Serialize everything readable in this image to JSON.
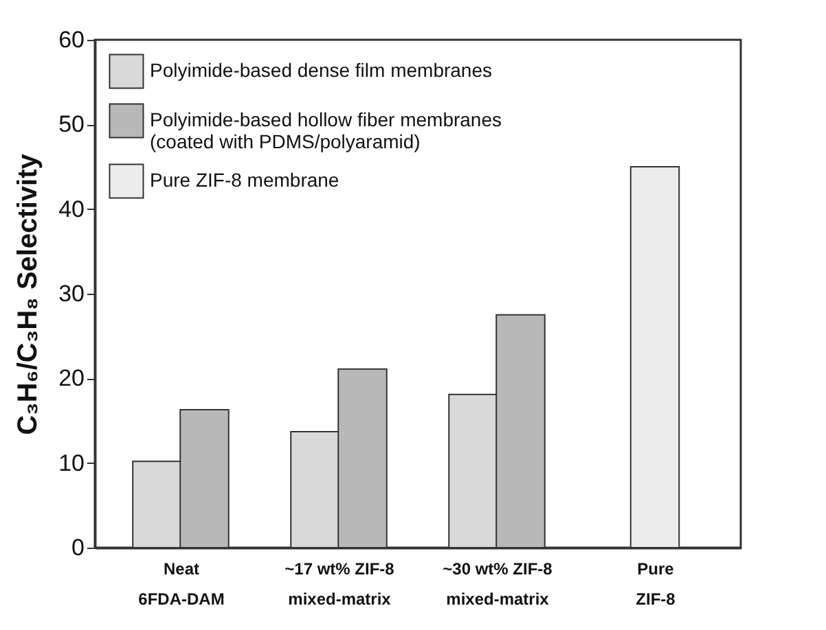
{
  "chart_data": {
    "type": "bar",
    "ylabel": "C₃H₆/C₃H₈ Selectivity",
    "categories": [
      "Neat\n6FDA-DAM",
      "~17 wt% ZIF-8\nmixed-matrix",
      "~30 wt% ZIF-8\nmixed-matrix",
      "Pure\nZIF-8"
    ],
    "series": [
      {
        "name": "Polyimide-based dense film membranes",
        "color": "#d9d9d9",
        "values": [
          10.2,
          13.7,
          18.1,
          null
        ]
      },
      {
        "name": "Polyimide-based hollow fiber membranes\n(coated with PDMS/polyaramid)",
        "color": "#b8b8b8",
        "values": [
          16.3,
          21.1,
          27.5,
          null
        ]
      },
      {
        "name": "Pure ZIF-8 membrane",
        "color": "#ececec",
        "values": [
          null,
          null,
          null,
          45
        ]
      }
    ],
    "ylim": [
      0,
      60
    ],
    "yticks": [
      0,
      10,
      20,
      30,
      40,
      50,
      60
    ],
    "grid": false,
    "legend": "top left"
  }
}
